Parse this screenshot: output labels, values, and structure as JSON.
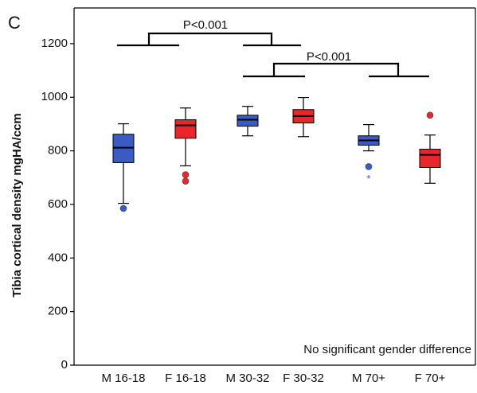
{
  "chart_data": {
    "type": "boxplot",
    "panel_label": "C",
    "y_label": "Tibia cortical density mgHA/ccm",
    "categories": [
      "M 16-18",
      "F 16-18",
      "M 30-32",
      "F 30-32",
      "M 70+",
      "F 70+"
    ],
    "colors": [
      "#3b5bc4",
      "#e8262b",
      "#3b5bc4",
      "#e8262b",
      "#3b5bc4",
      "#e8262b"
    ],
    "boxes": [
      {
        "min": 604,
        "q1": 756,
        "median": 812,
        "q3": 862,
        "max": 901,
        "outliers": [
          585
        ],
        "extremes": []
      },
      {
        "min": 744,
        "q1": 847,
        "median": 895,
        "q3": 916,
        "max": 960,
        "outliers": [
          711,
          687
        ],
        "extremes": []
      },
      {
        "min": 856,
        "q1": 892,
        "median": 916,
        "q3": 933,
        "max": 966,
        "outliers": [],
        "extremes": []
      },
      {
        "min": 853,
        "q1": 904,
        "median": 930,
        "q3": 954,
        "max": 999,
        "outliers": [],
        "extremes": []
      },
      {
        "min": 800,
        "q1": 821,
        "median": 839,
        "q3": 856,
        "max": 898,
        "outliers": [
          741
        ],
        "extremes": [
          702
        ]
      },
      {
        "min": 679,
        "q1": 738,
        "median": 785,
        "q3": 806,
        "max": 859,
        "outliers": [
          933
        ],
        "extremes": []
      }
    ],
    "ylim": [
      0,
      1320
    ],
    "yticks": [
      0,
      200,
      400,
      600,
      800,
      1000,
      1200
    ],
    "annotations": [
      "P<0.001",
      "P<0.001",
      "No significant gender difference"
    ]
  }
}
